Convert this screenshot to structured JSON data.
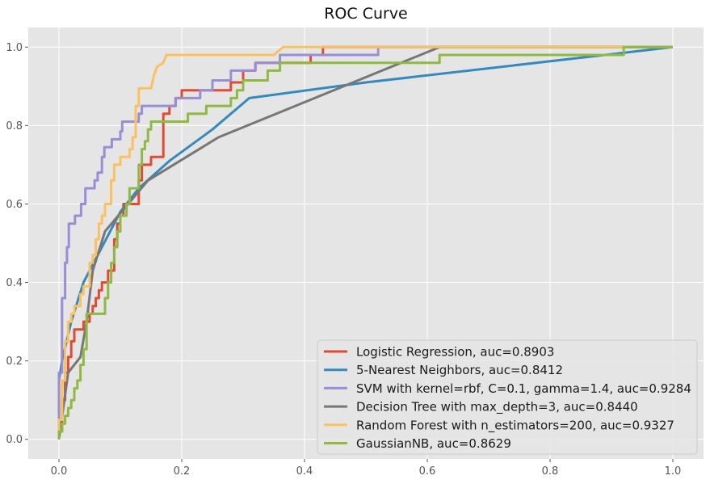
{
  "chart_data": {
    "type": "line",
    "title": "ROC Curve",
    "xlabel": "",
    "ylabel": "",
    "xlim": [
      -0.05,
      1.05
    ],
    "ylim": [
      -0.05,
      1.05
    ],
    "xticks": [
      "0.0",
      "0.2",
      "0.4",
      "0.6",
      "0.8",
      "1.0"
    ],
    "yticks": [
      "0.0",
      "0.2",
      "0.4",
      "0.6",
      "0.8",
      "1.0"
    ],
    "grid": true,
    "legend_position": "lower-right",
    "series": [
      {
        "name": "Logistic Regression, auc=0.8903",
        "color": "#E24A33",
        "points": [
          [
            0,
            0
          ],
          [
            0,
            0.02
          ],
          [
            0.005,
            0.02
          ],
          [
            0.005,
            0.1
          ],
          [
            0.01,
            0.1
          ],
          [
            0.01,
            0.17
          ],
          [
            0.015,
            0.17
          ],
          [
            0.015,
            0.21
          ],
          [
            0.02,
            0.21
          ],
          [
            0.02,
            0.25
          ],
          [
            0.025,
            0.25
          ],
          [
            0.025,
            0.28
          ],
          [
            0.04,
            0.28
          ],
          [
            0.04,
            0.3
          ],
          [
            0.05,
            0.3
          ],
          [
            0.05,
            0.32
          ],
          [
            0.055,
            0.32
          ],
          [
            0.055,
            0.34
          ],
          [
            0.06,
            0.34
          ],
          [
            0.06,
            0.36
          ],
          [
            0.065,
            0.36
          ],
          [
            0.065,
            0.38
          ],
          [
            0.07,
            0.38
          ],
          [
            0.07,
            0.4
          ],
          [
            0.08,
            0.4
          ],
          [
            0.08,
            0.43
          ],
          [
            0.09,
            0.43
          ],
          [
            0.09,
            0.51
          ],
          [
            0.095,
            0.51
          ],
          [
            0.095,
            0.55
          ],
          [
            0.1,
            0.55
          ],
          [
            0.1,
            0.57
          ],
          [
            0.105,
            0.57
          ],
          [
            0.105,
            0.6
          ],
          [
            0.13,
            0.6
          ],
          [
            0.13,
            0.66
          ],
          [
            0.135,
            0.66
          ],
          [
            0.135,
            0.7
          ],
          [
            0.15,
            0.7
          ],
          [
            0.15,
            0.72
          ],
          [
            0.17,
            0.72
          ],
          [
            0.17,
            0.83
          ],
          [
            0.18,
            0.83
          ],
          [
            0.18,
            0.85
          ],
          [
            0.19,
            0.85
          ],
          [
            0.19,
            0.87
          ],
          [
            0.2,
            0.87
          ],
          [
            0.2,
            0.89
          ],
          [
            0.22,
            0.89
          ],
          [
            0.22,
            0.89
          ],
          [
            0.28,
            0.89
          ],
          [
            0.28,
            0.91
          ],
          [
            0.3,
            0.91
          ],
          [
            0.3,
            0.94
          ],
          [
            0.32,
            0.94
          ],
          [
            0.32,
            0.96
          ],
          [
            0.41,
            0.96
          ],
          [
            0.41,
            0.98
          ],
          [
            0.43,
            0.98
          ],
          [
            0.43,
            1.0
          ],
          [
            1.0,
            1.0
          ]
        ]
      },
      {
        "name": "5-Nearest Neighbors, auc=0.8412",
        "color": "#348ABD",
        "points": [
          [
            0,
            0
          ],
          [
            0,
            0.15
          ],
          [
            0.005,
            0.2
          ],
          [
            0.02,
            0.3
          ],
          [
            0.04,
            0.4
          ],
          [
            0.1,
            0.58
          ],
          [
            0.13,
            0.64
          ],
          [
            0.18,
            0.71
          ],
          [
            0.25,
            0.79
          ],
          [
            0.31,
            0.87
          ],
          [
            0.5,
            0.91
          ],
          [
            1.0,
            1.0
          ]
        ]
      },
      {
        "name": "SVM with kernel=rbf, C=0.1, gamma=1.4, auc=0.9284",
        "color": "#988ED5",
        "points": [
          [
            0,
            0
          ],
          [
            0,
            0.17
          ],
          [
            0.005,
            0.17
          ],
          [
            0.005,
            0.36
          ],
          [
            0.01,
            0.36
          ],
          [
            0.01,
            0.45
          ],
          [
            0.013,
            0.45
          ],
          [
            0.013,
            0.49
          ],
          [
            0.016,
            0.49
          ],
          [
            0.016,
            0.55
          ],
          [
            0.026,
            0.55
          ],
          [
            0.026,
            0.57
          ],
          [
            0.036,
            0.57
          ],
          [
            0.036,
            0.6
          ],
          [
            0.043,
            0.6
          ],
          [
            0.043,
            0.64
          ],
          [
            0.058,
            0.64
          ],
          [
            0.058,
            0.66
          ],
          [
            0.063,
            0.66
          ],
          [
            0.063,
            0.68
          ],
          [
            0.07,
            0.68
          ],
          [
            0.07,
            0.72
          ],
          [
            0.074,
            0.72
          ],
          [
            0.074,
            0.745
          ],
          [
            0.086,
            0.745
          ],
          [
            0.086,
            0.765
          ],
          [
            0.1,
            0.765
          ],
          [
            0.1,
            0.785
          ],
          [
            0.103,
            0.785
          ],
          [
            0.103,
            0.81
          ],
          [
            0.13,
            0.81
          ],
          [
            0.13,
            0.83
          ],
          [
            0.135,
            0.83
          ],
          [
            0.135,
            0.85
          ],
          [
            0.19,
            0.85
          ],
          [
            0.19,
            0.87
          ],
          [
            0.23,
            0.87
          ],
          [
            0.23,
            0.89
          ],
          [
            0.25,
            0.89
          ],
          [
            0.25,
            0.915
          ],
          [
            0.28,
            0.915
          ],
          [
            0.28,
            0.94
          ],
          [
            0.32,
            0.94
          ],
          [
            0.32,
            0.96
          ],
          [
            0.36,
            0.96
          ],
          [
            0.36,
            0.98
          ],
          [
            0.52,
            0.98
          ],
          [
            0.52,
            1.0
          ],
          [
            1.0,
            1.0
          ]
        ]
      },
      {
        "name": "Decision Tree with max_depth=3, auc=0.8440",
        "color": "#777777",
        "points": [
          [
            0,
            0
          ],
          [
            0.015,
            0.17
          ],
          [
            0.035,
            0.21
          ],
          [
            0.045,
            0.3
          ],
          [
            0.055,
            0.43
          ],
          [
            0.075,
            0.53
          ],
          [
            0.145,
            0.66
          ],
          [
            0.26,
            0.77
          ],
          [
            0.62,
            1.0
          ],
          [
            1.0,
            1.0
          ]
        ]
      },
      {
        "name": "Random Forest with n_estimators=200, auc=0.9327",
        "color": "#FBC15E",
        "points": [
          [
            0,
            0
          ],
          [
            0,
            0.05
          ],
          [
            0.005,
            0.05
          ],
          [
            0.005,
            0.15
          ],
          [
            0.01,
            0.15
          ],
          [
            0.01,
            0.25
          ],
          [
            0.015,
            0.25
          ],
          [
            0.015,
            0.3
          ],
          [
            0.02,
            0.3
          ],
          [
            0.02,
            0.32
          ],
          [
            0.025,
            0.32
          ],
          [
            0.025,
            0.34
          ],
          [
            0.035,
            0.34
          ],
          [
            0.035,
            0.37
          ],
          [
            0.04,
            0.37
          ],
          [
            0.04,
            0.39
          ],
          [
            0.05,
            0.39
          ],
          [
            0.05,
            0.45
          ],
          [
            0.055,
            0.45
          ],
          [
            0.055,
            0.47
          ],
          [
            0.06,
            0.47
          ],
          [
            0.06,
            0.51
          ],
          [
            0.065,
            0.51
          ],
          [
            0.065,
            0.55
          ],
          [
            0.07,
            0.55
          ],
          [
            0.07,
            0.57
          ],
          [
            0.075,
            0.57
          ],
          [
            0.075,
            0.6
          ],
          [
            0.085,
            0.6
          ],
          [
            0.085,
            0.66
          ],
          [
            0.09,
            0.66
          ],
          [
            0.09,
            0.7
          ],
          [
            0.1,
            0.7
          ],
          [
            0.1,
            0.72
          ],
          [
            0.115,
            0.72
          ],
          [
            0.115,
            0.74
          ],
          [
            0.12,
            0.74
          ],
          [
            0.12,
            0.77
          ],
          [
            0.125,
            0.77
          ],
          [
            0.125,
            0.85
          ],
          [
            0.13,
            0.85
          ],
          [
            0.13,
            0.895
          ],
          [
            0.15,
            0.895
          ],
          [
            0.155,
            0.93
          ],
          [
            0.16,
            0.95
          ],
          [
            0.17,
            0.96
          ],
          [
            0.175,
            0.98
          ],
          [
            0.35,
            0.98
          ],
          [
            0.365,
            1.0
          ],
          [
            1.0,
            1.0
          ]
        ]
      },
      {
        "name": "GaussianNB, auc=0.8629",
        "color": "#8EBA42",
        "points": [
          [
            0,
            0
          ],
          [
            0,
            0.02
          ],
          [
            0.005,
            0.02
          ],
          [
            0.005,
            0.04
          ],
          [
            0.01,
            0.04
          ],
          [
            0.01,
            0.06
          ],
          [
            0.015,
            0.06
          ],
          [
            0.015,
            0.08
          ],
          [
            0.02,
            0.08
          ],
          [
            0.02,
            0.1
          ],
          [
            0.025,
            0.1
          ],
          [
            0.025,
            0.13
          ],
          [
            0.03,
            0.13
          ],
          [
            0.03,
            0.15
          ],
          [
            0.035,
            0.15
          ],
          [
            0.035,
            0.19
          ],
          [
            0.04,
            0.19
          ],
          [
            0.04,
            0.23
          ],
          [
            0.045,
            0.23
          ],
          [
            0.045,
            0.32
          ],
          [
            0.075,
            0.32
          ],
          [
            0.075,
            0.36
          ],
          [
            0.08,
            0.36
          ],
          [
            0.08,
            0.4
          ],
          [
            0.085,
            0.4
          ],
          [
            0.085,
            0.45
          ],
          [
            0.09,
            0.45
          ],
          [
            0.09,
            0.49
          ],
          [
            0.095,
            0.49
          ],
          [
            0.095,
            0.53
          ],
          [
            0.1,
            0.53
          ],
          [
            0.1,
            0.57
          ],
          [
            0.11,
            0.57
          ],
          [
            0.11,
            0.6
          ],
          [
            0.115,
            0.6
          ],
          [
            0.115,
            0.64
          ],
          [
            0.13,
            0.64
          ],
          [
            0.13,
            0.7
          ],
          [
            0.135,
            0.7
          ],
          [
            0.135,
            0.74
          ],
          [
            0.14,
            0.74
          ],
          [
            0.14,
            0.76
          ],
          [
            0.145,
            0.76
          ],
          [
            0.145,
            0.79
          ],
          [
            0.15,
            0.79
          ],
          [
            0.15,
            0.81
          ],
          [
            0.21,
            0.81
          ],
          [
            0.21,
            0.83
          ],
          [
            0.24,
            0.83
          ],
          [
            0.24,
            0.85
          ],
          [
            0.28,
            0.85
          ],
          [
            0.28,
            0.87
          ],
          [
            0.29,
            0.87
          ],
          [
            0.29,
            0.89
          ],
          [
            0.3,
            0.89
          ],
          [
            0.3,
            0.915
          ],
          [
            0.34,
            0.915
          ],
          [
            0.34,
            0.94
          ],
          [
            0.36,
            0.94
          ],
          [
            0.36,
            0.96
          ],
          [
            0.62,
            0.96
          ],
          [
            0.62,
            0.98
          ],
          [
            0.92,
            0.98
          ],
          [
            0.92,
            1.0
          ],
          [
            1.0,
            1.0
          ]
        ]
      }
    ]
  }
}
